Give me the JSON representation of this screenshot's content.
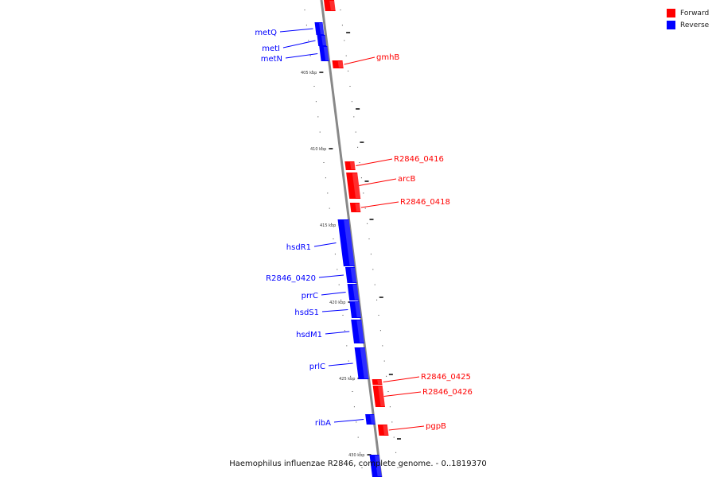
{
  "colors": {
    "forward": "#ff0000",
    "reverse": "#0000ff",
    "backbone": "#888888",
    "tick": "#000000"
  },
  "legend": {
    "forward_label": "Forward",
    "reverse_label": "Reverse"
  },
  "footer": "Haemophilus influenzae R2846, complete genome. - 0..1819370",
  "ticks": [
    "405 kbp",
    "410 kbp",
    "415 kbp",
    "420 kbp",
    "425 kbp",
    "430 kbp"
  ],
  "genes": [
    {
      "name": "",
      "strand": "forward"
    },
    {
      "name": "metQ",
      "strand": "reverse"
    },
    {
      "name": "metI",
      "strand": "reverse"
    },
    {
      "name": "metN",
      "strand": "reverse"
    },
    {
      "name": "gmhB",
      "strand": "forward"
    },
    {
      "name": "R2846_0416",
      "strand": "forward"
    },
    {
      "name": "arcB",
      "strand": "forward"
    },
    {
      "name": "R2846_0418",
      "strand": "forward"
    },
    {
      "name": "hsdR1",
      "strand": "reverse"
    },
    {
      "name": "R2846_0420",
      "strand": "reverse"
    },
    {
      "name": "prrC",
      "strand": "reverse"
    },
    {
      "name": "hsdS1",
      "strand": "reverse"
    },
    {
      "name": "hsdM1",
      "strand": "reverse"
    },
    {
      "name": "prlC",
      "strand": "reverse"
    },
    {
      "name": "R2846_0425",
      "strand": "forward"
    },
    {
      "name": "R2846_0426",
      "strand": "forward"
    },
    {
      "name": "ribA",
      "strand": "reverse"
    },
    {
      "name": "pgpB",
      "strand": "forward"
    },
    {
      "name": "",
      "strand": "reverse"
    }
  ]
}
